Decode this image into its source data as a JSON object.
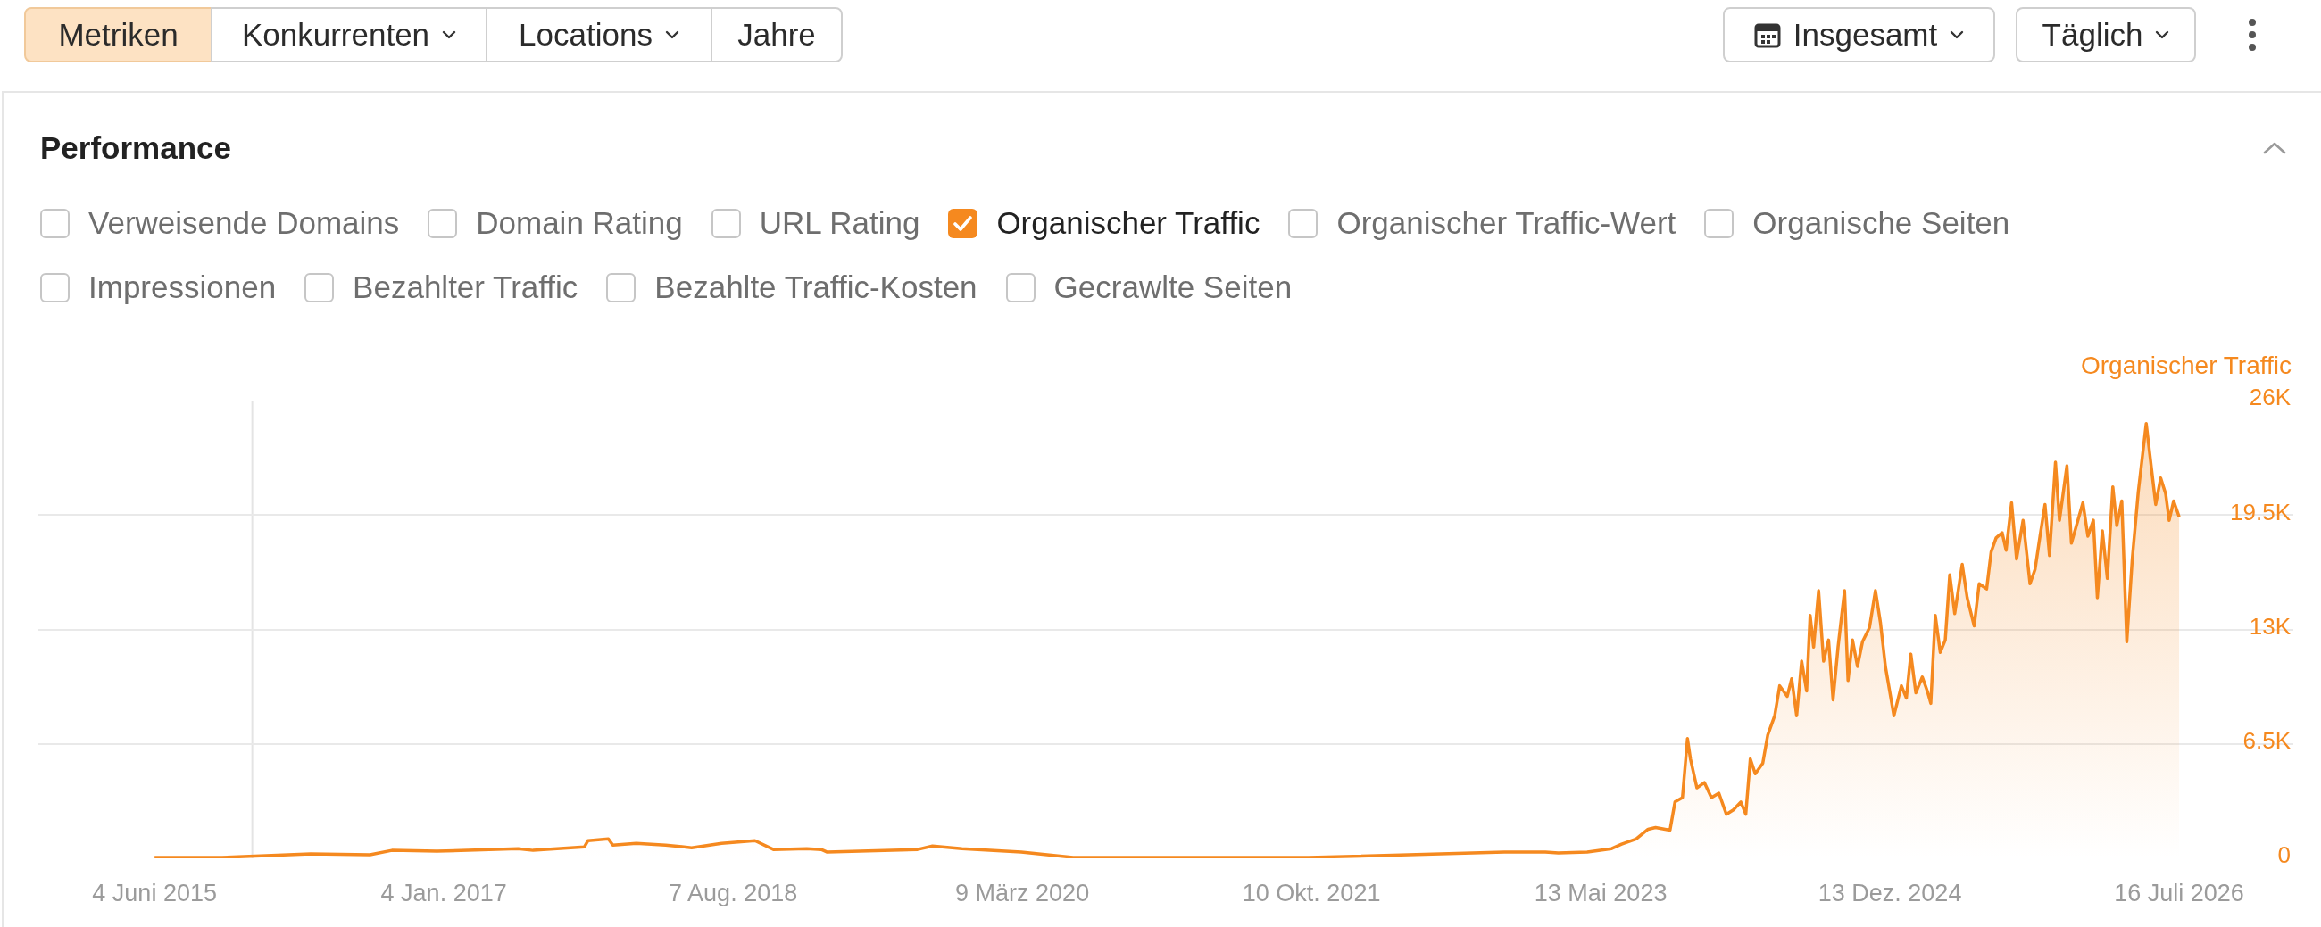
{
  "chart_data": {
    "type": "area",
    "title": "Performance",
    "ylabel": "Organischer Traffic",
    "annotations": [
      "Metriken",
      "Konkurrenten",
      "Locations",
      "Jahre",
      "Insgesamt",
      "Täglich",
      "Verweisende Domains",
      "Domain Rating",
      "URL Rating",
      "Organischer Traffic-Wert",
      "Organische Seiten",
      "Impressionen",
      "Bezahlter Traffic",
      "Bezahlte Traffic-Kosten",
      "Gecrawlte Seiten"
    ],
    "x": [
      "2015-06-04",
      "2015-10-17",
      "2016-04-12",
      "2016-08-09",
      "2016-09-22",
      "2016-12-21",
      "2017-06-02",
      "2017-07-02",
      "2017-10-13",
      "2017-10-20",
      "2017-11-30",
      "2017-12-09",
      "2018-01-25",
      "2018-03-25",
      "2018-05-16",
      "2018-07-15",
      "2018-09-20",
      "2018-10-27",
      "2019-01-02",
      "2019-01-31",
      "2019-02-12",
      "2019-08-12",
      "2019-09-11",
      "2019-11-09",
      "2020-03-07",
      "2020-06-19",
      "2020-12-11",
      "2021-10-04",
      "2022-11-01",
      "2023-01-22",
      "2023-02-17",
      "2023-04-16",
      "2023-06-04",
      "2023-06-24",
      "2023-07-23",
      "2023-08-16",
      "2023-08-31",
      "2023-09-29",
      "2023-10-09",
      "2023-10-24",
      "2023-11-03",
      "2023-11-09",
      "2023-11-22",
      "2023-12-07",
      "2023-12-21",
      "2024-01-05",
      "2024-01-20",
      "2024-02-03",
      "2024-02-18",
      "2024-02-28",
      "2024-03-08",
      "2024-03-18",
      "2024-04-02",
      "2024-04-12",
      "2024-04-26",
      "2024-05-06",
      "2024-05-21",
      "2024-05-30",
      "2024-06-09",
      "2024-06-19",
      "2024-06-29",
      "2024-07-06",
      "2024-07-13",
      "2024-07-23",
      "2024-08-02",
      "2024-08-12",
      "2024-08-21",
      "2024-08-31",
      "2024-09-13",
      "2024-09-20",
      "2024-09-29",
      "2024-10-09",
      "2024-10-19",
      "2024-11-02",
      "2024-11-14",
      "2024-11-24",
      "2024-12-04",
      "2024-12-21",
      "2025-01-05",
      "2025-01-15",
      "2025-01-24",
      "2025-02-03",
      "2025-02-16",
      "2025-02-26",
      "2025-03-05",
      "2025-03-14",
      "2025-03-24",
      "2025-04-03",
      "2025-04-12",
      "2025-04-22",
      "2025-05-07",
      "2025-05-17",
      "2025-05-31",
      "2025-06-10",
      "2025-06-25",
      "2025-07-04",
      "2025-07-14",
      "2025-07-26",
      "2025-08-03",
      "2025-08-14",
      "2025-08-24",
      "2025-09-06",
      "2025-09-20",
      "2025-09-30",
      "2025-10-10",
      "2025-10-20",
      "2025-10-29",
      "2025-11-10",
      "2025-11-18",
      "2025-12-03",
      "2025-12-12",
      "2025-12-25",
      "2026-01-04",
      "2026-01-14",
      "2026-01-25",
      "2026-02-02",
      "2026-02-12",
      "2026-02-22",
      "2026-03-05",
      "2026-03-13",
      "2026-03-23",
      "2026-04-02",
      "2026-04-13",
      "2026-04-25",
      "2026-05-11",
      "2026-05-20",
      "2026-05-30",
      "2026-06-09",
      "2026-06-19",
      "2026-06-26",
      "2026-07-05",
      "2026-07-16"
    ],
    "series": [
      {
        "name": "Organischer Traffic",
        "color": "#f5891f",
        "values": [
          50,
          50,
          250,
          200,
          450,
          400,
          550,
          450,
          650,
          1000,
          1100,
          750,
          850,
          750,
          600,
          850,
          1000,
          500,
          550,
          500,
          350,
          500,
          700,
          550,
          350,
          50,
          50,
          50,
          350,
          350,
          300,
          350,
          550,
          800,
          1100,
          1650,
          1750,
          1600,
          3200,
          3450,
          6800,
          5650,
          4000,
          4300,
          3450,
          3700,
          2500,
          2750,
          3200,
          2500,
          5650,
          4800,
          5400,
          7000,
          8100,
          9800,
          9200,
          10200,
          8100,
          11200,
          9500,
          13800,
          12000,
          15200,
          11200,
          12400,
          9000,
          12000,
          15200,
          10100,
          12400,
          10900,
          12300,
          13100,
          15200,
          13400,
          10900,
          8100,
          9800,
          9100,
          11600,
          9400,
          10300,
          9500,
          8800,
          13800,
          11700,
          12400,
          16100,
          13900,
          16700,
          14800,
          13200,
          15600,
          15300,
          17400,
          18200,
          18500,
          17500,
          20200,
          17000,
          19200,
          15600,
          16400,
          18300,
          20100,
          17200,
          22500,
          19200,
          22300,
          17900,
          19200,
          20200,
          18300,
          19200,
          14800,
          18600,
          15900,
          21100,
          18900,
          20300,
          12300,
          17000,
          20800,
          24700,
          22500,
          20100,
          21600,
          20700,
          19200,
          20300,
          19400
        ]
      }
    ],
    "xlim": [
      "2014-10-14",
      "2027-03-02"
    ],
    "xticks": [
      {
        "value": "2015-06-04",
        "label": "4 Juni 2015"
      },
      {
        "value": "2017-01-04",
        "label": "4 Jan. 2017"
      },
      {
        "value": "2018-08-07",
        "label": "7 Aug. 2018"
      },
      {
        "value": "2020-03-09",
        "label": "9 März 2020"
      },
      {
        "value": "2021-10-10",
        "label": "10 Okt. 2021"
      },
      {
        "value": "2023-05-13",
        "label": "13 Mai 2023"
      },
      {
        "value": "2024-12-13",
        "label": "13 Dez. 2024"
      },
      {
        "value": "2026-07-16",
        "label": "16 Juli 2026"
      }
    ],
    "ylim": [
      0,
      26000
    ],
    "yticks": [
      0,
      {
        "value": 6500,
        "label": "6.5K"
      },
      {
        "value": 13000,
        "label": "13K"
      },
      {
        "value": 19500,
        "label": "19.5K"
      },
      {
        "value": 26000,
        "label": "26K"
      }
    ],
    "grid": "y",
    "legend": "top left",
    "ref_lines": [
      {
        "axis": "x",
        "value": "2015-12-17",
        "color": "#e4e4e4"
      }
    ]
  }
}
